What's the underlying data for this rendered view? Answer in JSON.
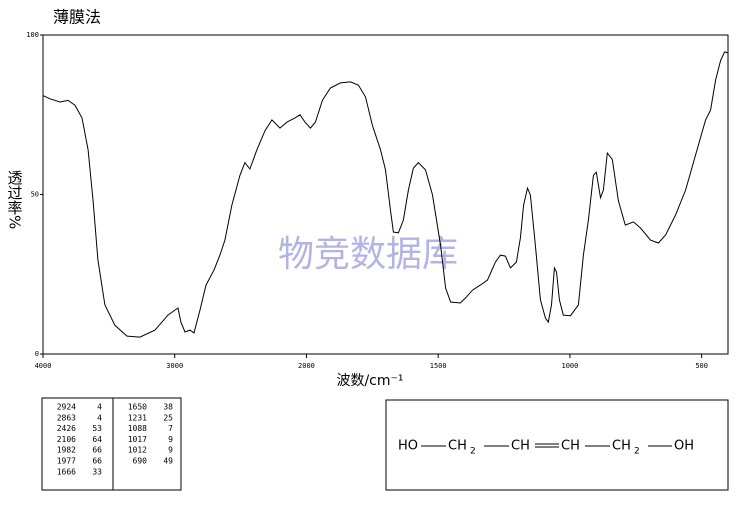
{
  "chart_data": {
    "type": "line",
    "title": "薄膜法",
    "xlabel": "波数/cm⁻¹",
    "ylabel": "透过率%",
    "watermark": "物竞数据库",
    "x": [
      4000,
      3947,
      3871,
      3810,
      3757,
      3704,
      3658,
      3620,
      3583,
      3530,
      3454,
      3362,
      3264,
      3150,
      3051,
      2998,
      2975,
      2953,
      2922,
      2884,
      2854,
      2808,
      2763,
      2702,
      2657,
      2619,
      2566,
      2505,
      2467,
      2429,
      2376,
      2315,
      2262,
      2201,
      2148,
      2087,
      2049,
      2011,
      1985,
      1966,
      1939,
      1909,
      1871,
      1833,
      1803,
      1776,
      1750,
      1719,
      1700,
      1681,
      1670,
      1651,
      1632,
      1613,
      1594,
      1575,
      1548,
      1522,
      1491,
      1472,
      1453,
      1416,
      1396,
      1370,
      1340,
      1313,
      1283,
      1264,
      1245,
      1226,
      1203,
      1188,
      1176,
      1161,
      1150,
      1131,
      1112,
      1093,
      1082,
      1070,
      1059,
      1051,
      1040,
      1025,
      998,
      968,
      949,
      930,
      911,
      900,
      884,
      873,
      858,
      839,
      816,
      790,
      759,
      732,
      694,
      664,
      637,
      599,
      561,
      523,
      485,
      466,
      447,
      428,
      413,
      400
    ],
    "series": [
      {
        "color": "#000000",
        "values": [
          81,
          80,
          79,
          79.5,
          78,
          74,
          64,
          48,
          29.5,
          15.4,
          9,
          5.6,
          5.3,
          7.5,
          12.2,
          13.8,
          14.4,
          10,
          6.9,
          7.5,
          6.6,
          13.8,
          21.6,
          26.3,
          31,
          35.7,
          46.7,
          56,
          60,
          58,
          64,
          70,
          73.4,
          70.8,
          72.7,
          74,
          75,
          72.7,
          70.8,
          72.7,
          79.6,
          83.4,
          85,
          85.3,
          84.3,
          80.6,
          71.8,
          64,
          57.7,
          45,
          38.2,
          38,
          42,
          51.4,
          58.3,
          60,
          57.7,
          50,
          34,
          20.7,
          16.3,
          16,
          17.6,
          20,
          21.6,
          23.2,
          28.8,
          31,
          30.7,
          27,
          28.8,
          36.4,
          46.7,
          52,
          49.8,
          34,
          17,
          11.3,
          10,
          15.4,
          27,
          25.7,
          17,
          12.2,
          12,
          15.4,
          31,
          42,
          56,
          57,
          49,
          51.4,
          63,
          61,
          48,
          40.4,
          41.4,
          39.5,
          35.7,
          34.8,
          37.3,
          43.6,
          51.4,
          62.4,
          73.4,
          76.5,
          85.9,
          92,
          94.7,
          94.4
        ]
      }
    ],
    "xlim": [
      4000,
      400
    ],
    "x_break": 2000,
    "xticks": [
      4000,
      3000,
      2000,
      1500,
      1000,
      500
    ],
    "ylim": [
      0,
      100
    ],
    "yticks": [
      0,
      50,
      100
    ]
  },
  "peak_table": {
    "columns": [
      [
        [
          2924,
          4
        ],
        [
          2863,
          4
        ],
        [
          2426,
          53
        ],
        [
          2106,
          64
        ],
        [
          1982,
          66
        ],
        [
          1977,
          66
        ],
        [
          1666,
          33
        ]
      ],
      [
        [
          1650,
          38
        ],
        [
          1231,
          25
        ],
        [
          1088,
          7
        ],
        [
          1017,
          9
        ],
        [
          1012,
          9
        ],
        [
          690,
          49
        ]
      ]
    ]
  },
  "structure": {
    "groups": [
      {
        "text": "HO"
      },
      {
        "text": "CH",
        "sub": "2"
      },
      {
        "text": "CH"
      },
      {
        "text": "CH"
      },
      {
        "text": "CH",
        "sub": "2"
      },
      {
        "text": "OH"
      }
    ]
  }
}
